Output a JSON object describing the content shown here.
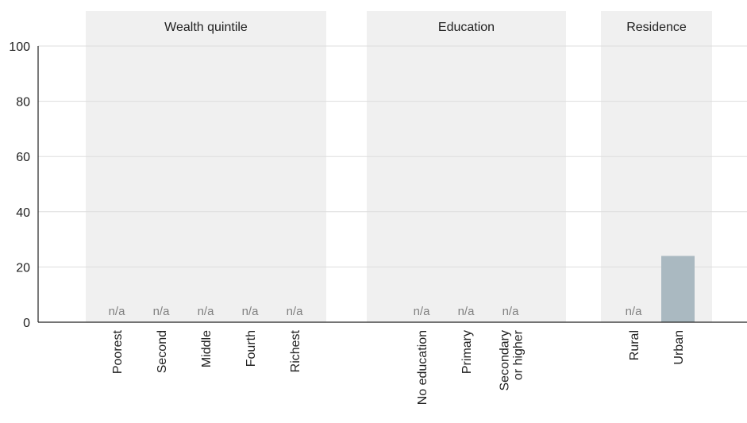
{
  "chart_data": {
    "type": "bar",
    "ylim": [
      0,
      100
    ],
    "yticks": [
      0,
      20,
      40,
      60,
      80,
      100
    ],
    "grid": true,
    "na_text": "n/a",
    "groups": [
      {
        "label": "Wealth quintile",
        "categories": [
          {
            "label": [
              "Poorest"
            ],
            "value": null
          },
          {
            "label": [
              "Second"
            ],
            "value": null
          },
          {
            "label": [
              "Middle"
            ],
            "value": null
          },
          {
            "label": [
              "Fourth"
            ],
            "value": null
          },
          {
            "label": [
              "Richest"
            ],
            "value": null
          }
        ]
      },
      {
        "label": "Education",
        "categories": [
          {
            "label": [
              "No education"
            ],
            "value": null
          },
          {
            "label": [
              "Primary"
            ],
            "value": null
          },
          {
            "label": [
              "Secondary",
              "or higher"
            ],
            "value": null
          }
        ]
      },
      {
        "label": "Residence",
        "categories": [
          {
            "label": [
              "Rural"
            ],
            "value": null
          },
          {
            "label": [
              "Urban"
            ],
            "value": 24
          }
        ]
      }
    ],
    "colors": {
      "bar": "#aab9c1",
      "group_background": "#f0f0f0",
      "grid": "#dddddd",
      "na_text": "#808080"
    }
  }
}
